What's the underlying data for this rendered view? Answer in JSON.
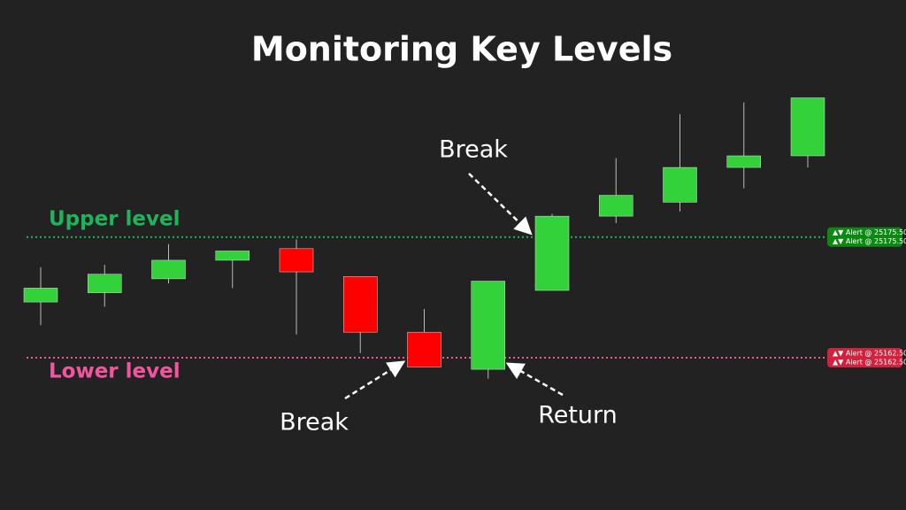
{
  "chart_data": {
    "type": "candlestick",
    "title": "Monitoring Key Levels",
    "up_color": "#33d13a",
    "down_color": "#ff0000",
    "ylim": [
      25155.25,
      25191.5
    ],
    "open": [
      25168.5,
      25169.5,
      25171.0,
      25173.0,
      25174.25,
      25171.25,
      25165.25,
      25161.25,
      25169.75,
      25177.75,
      25179.25,
      25183.0,
      25184.25
    ],
    "high": [
      25172.25,
      25172.5,
      25174.75,
      25174.0,
      25175.25,
      25171.25,
      25167.75,
      25170.75,
      25178.0,
      25184.0,
      25188.75,
      25190.0,
      25190.5
    ],
    "low": [
      25166.0,
      25168.0,
      25170.5,
      25170.0,
      25165.0,
      25163.0,
      25161.5,
      25160.25,
      25169.75,
      25177.0,
      25178.25,
      25180.75,
      25183.0
    ],
    "close": [
      25170.0,
      25171.5,
      25173.0,
      25174.0,
      25171.75,
      25165.25,
      25161.5,
      25170.75,
      25177.75,
      25180.0,
      25183.0,
      25184.25,
      25190.5
    ],
    "levels": [
      {
        "name": "Upper level",
        "value": 25175.5,
        "color": "#1fb35a",
        "tag_color": "#0b8a12",
        "alert_labels": [
          "▲▼ Alert @ 25175.50",
          "▲▼ Alert @ 25175.50"
        ]
      },
      {
        "name": "Lower level",
        "value": 25162.5,
        "color": "#f2559e",
        "tag_color": "#d3203c",
        "alert_labels": [
          "▲▼ Alert @ 25162.50",
          "▲▼ Alert @ 25162.50"
        ]
      }
    ],
    "annotations": [
      "Break",
      "Break",
      "Return"
    ]
  }
}
